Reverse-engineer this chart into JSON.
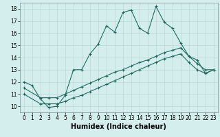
{
  "xlabel": "Humidex (Indice chaleur)",
  "bg_color": "#d4eeee",
  "grid_color": "#b8d8d8",
  "line_color": "#1e6b5e",
  "xlim": [
    -0.5,
    23.5
  ],
  "ylim": [
    9.5,
    18.5
  ],
  "xticks": [
    0,
    1,
    2,
    3,
    4,
    5,
    6,
    7,
    8,
    9,
    10,
    11,
    12,
    13,
    14,
    15,
    16,
    17,
    18,
    19,
    20,
    21,
    22,
    23
  ],
  "yticks": [
    10,
    11,
    12,
    13,
    14,
    15,
    16,
    17,
    18
  ],
  "line1_x": [
    0,
    1,
    2,
    3,
    4,
    5,
    6,
    7,
    8,
    9,
    10,
    11,
    12,
    13,
    14,
    15,
    16,
    17,
    18,
    19,
    20,
    21,
    22,
    23
  ],
  "line1_y": [
    12.0,
    11.7,
    10.6,
    9.9,
    10.0,
    10.9,
    13.0,
    13.0,
    14.3,
    15.1,
    16.6,
    16.1,
    17.7,
    17.9,
    16.4,
    16.0,
    18.2,
    16.9,
    16.4,
    15.2,
    14.1,
    13.8,
    12.7,
    13.0
  ],
  "line2_x": [
    0,
    2,
    3,
    4,
    5,
    6,
    7,
    8,
    9,
    10,
    11,
    12,
    13,
    14,
    15,
    16,
    17,
    18,
    19,
    20,
    21,
    22,
    23
  ],
  "line2_y": [
    11.5,
    10.7,
    10.7,
    10.7,
    11.0,
    11.3,
    11.6,
    11.9,
    12.2,
    12.5,
    12.8,
    13.0,
    13.3,
    13.6,
    13.8,
    14.1,
    14.4,
    14.6,
    14.8,
    14.1,
    13.5,
    13.0,
    13.0
  ],
  "line3_x": [
    0,
    2,
    3,
    4,
    5,
    6,
    7,
    8,
    9,
    10,
    11,
    12,
    13,
    14,
    15,
    16,
    17,
    18,
    19,
    20,
    21,
    22,
    23
  ],
  "line3_y": [
    11.0,
    10.2,
    10.2,
    10.2,
    10.4,
    10.7,
    10.9,
    11.2,
    11.5,
    11.8,
    12.1,
    12.4,
    12.7,
    13.0,
    13.3,
    13.6,
    13.9,
    14.1,
    14.3,
    13.6,
    13.0,
    12.7,
    13.0
  ],
  "axis_fontsize": 7,
  "tick_fontsize": 5.5
}
